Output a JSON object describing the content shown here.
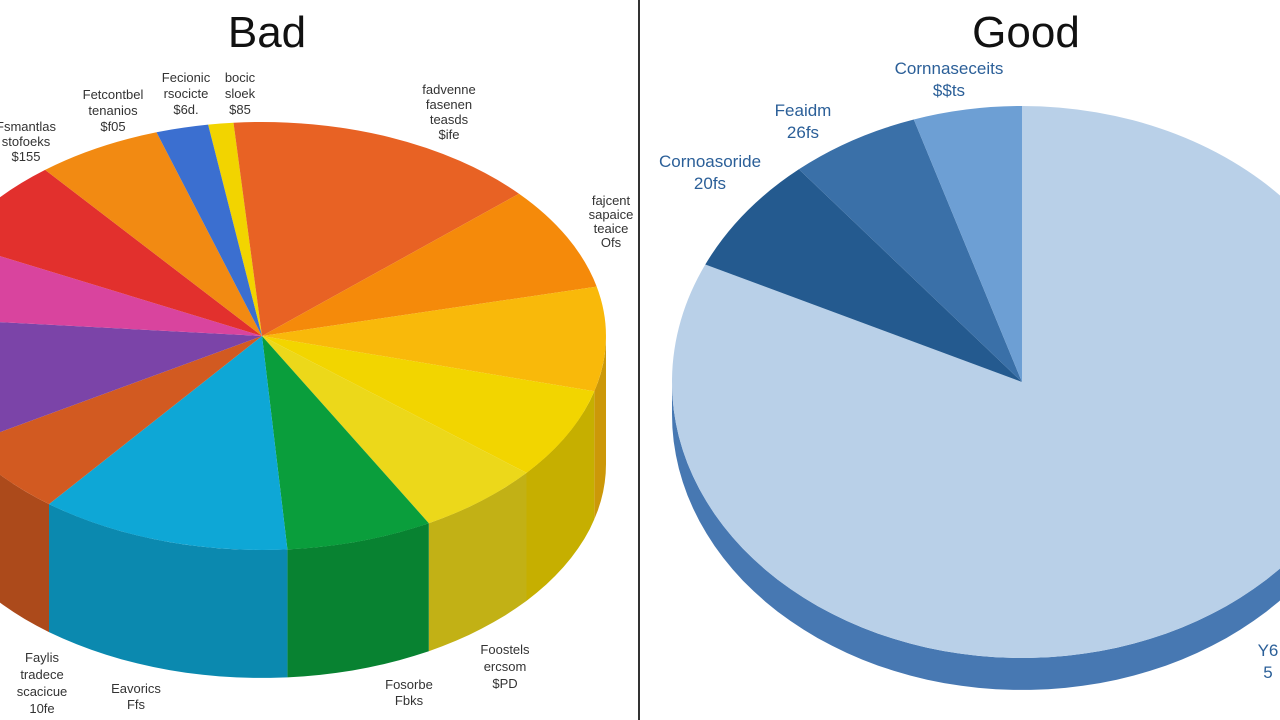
{
  "divider_color": "#333333",
  "chart_data": [
    {
      "type": "pie",
      "style": "3d",
      "title": "Bad",
      "slices": [
        {
          "label": "",
          "value": 1.2,
          "color": "#f2d400"
        },
        {
          "label": "",
          "value": 15,
          "color": "#e86224"
        },
        {
          "label": "",
          "value": 8,
          "color": "#f58a0a"
        },
        {
          "label": "",
          "value": 8,
          "color": "#f9b90a"
        },
        {
          "label": "",
          "value": 7,
          "color": "#f2d500"
        },
        {
          "label": "",
          "value": 6,
          "color": "#ecd81a"
        },
        {
          "label": "",
          "value": 7,
          "color": "#0a9e3c"
        },
        {
          "label": "",
          "value": 12,
          "color": "#0ea7d6"
        },
        {
          "label": "",
          "value": 6,
          "color": "#d25a21"
        },
        {
          "label": "",
          "value": 10,
          "color": "#7b44a8"
        },
        {
          "label": "",
          "value": 6,
          "color": "#d9449e"
        },
        {
          "label": "",
          "value": 7,
          "color": "#e2302d"
        },
        {
          "label": "",
          "value": 6,
          "color": "#f28a12"
        },
        {
          "label": "",
          "value": 2.5,
          "color": "#3b6fd0"
        }
      ],
      "annotations": [
        {
          "lines": [
            "Fecionic",
            "rsocicte",
            "$6d."
          ]
        },
        {
          "lines": [
            "bocic",
            "sloek",
            "$85"
          ]
        },
        {
          "lines": [
            "Fetcontbel",
            "tenanios",
            "$f05"
          ]
        },
        {
          "lines": [
            "Fsmantlas",
            "stofoeks",
            "$155"
          ]
        },
        {
          "lines": [
            "fadvenne",
            "fasenen",
            "teasds",
            "$ife"
          ]
        },
        {
          "lines": [
            "fajcent",
            "sapaice",
            "teaice",
            "Ofs"
          ]
        },
        {
          "lines": [
            "Faylis",
            "tradece",
            "scacicue",
            "10fe"
          ]
        },
        {
          "lines": [
            "Eavorics",
            "Ffs"
          ]
        },
        {
          "lines": [
            "Fosorbe",
            "Fbks"
          ]
        },
        {
          "lines": [
            "Foostels",
            "ercsom",
            "$PD"
          ]
        }
      ]
    },
    {
      "type": "pie",
      "style": "3d",
      "title": "Good",
      "slices": [
        {
          "label": "Y6",
          "value": 82,
          "color": "#b9d0e8"
        },
        {
          "label": "Cornoasoride",
          "value": 7,
          "color": "#245a8f"
        },
        {
          "label": "Feaidm",
          "value": 6,
          "color": "#3a70a8"
        },
        {
          "label": "Cornnaseceits",
          "value": 5,
          "color": "#6d9fd4"
        }
      ],
      "annotations": [
        {
          "lines": [
            "Cornnaseceits",
            "$$ts"
          ]
        },
        {
          "lines": [
            "Feaidm",
            "26fs"
          ]
        },
        {
          "lines": [
            "Cornoasoride",
            "20fs"
          ]
        },
        {
          "lines": [
            "Y6",
            "5"
          ]
        }
      ]
    }
  ]
}
